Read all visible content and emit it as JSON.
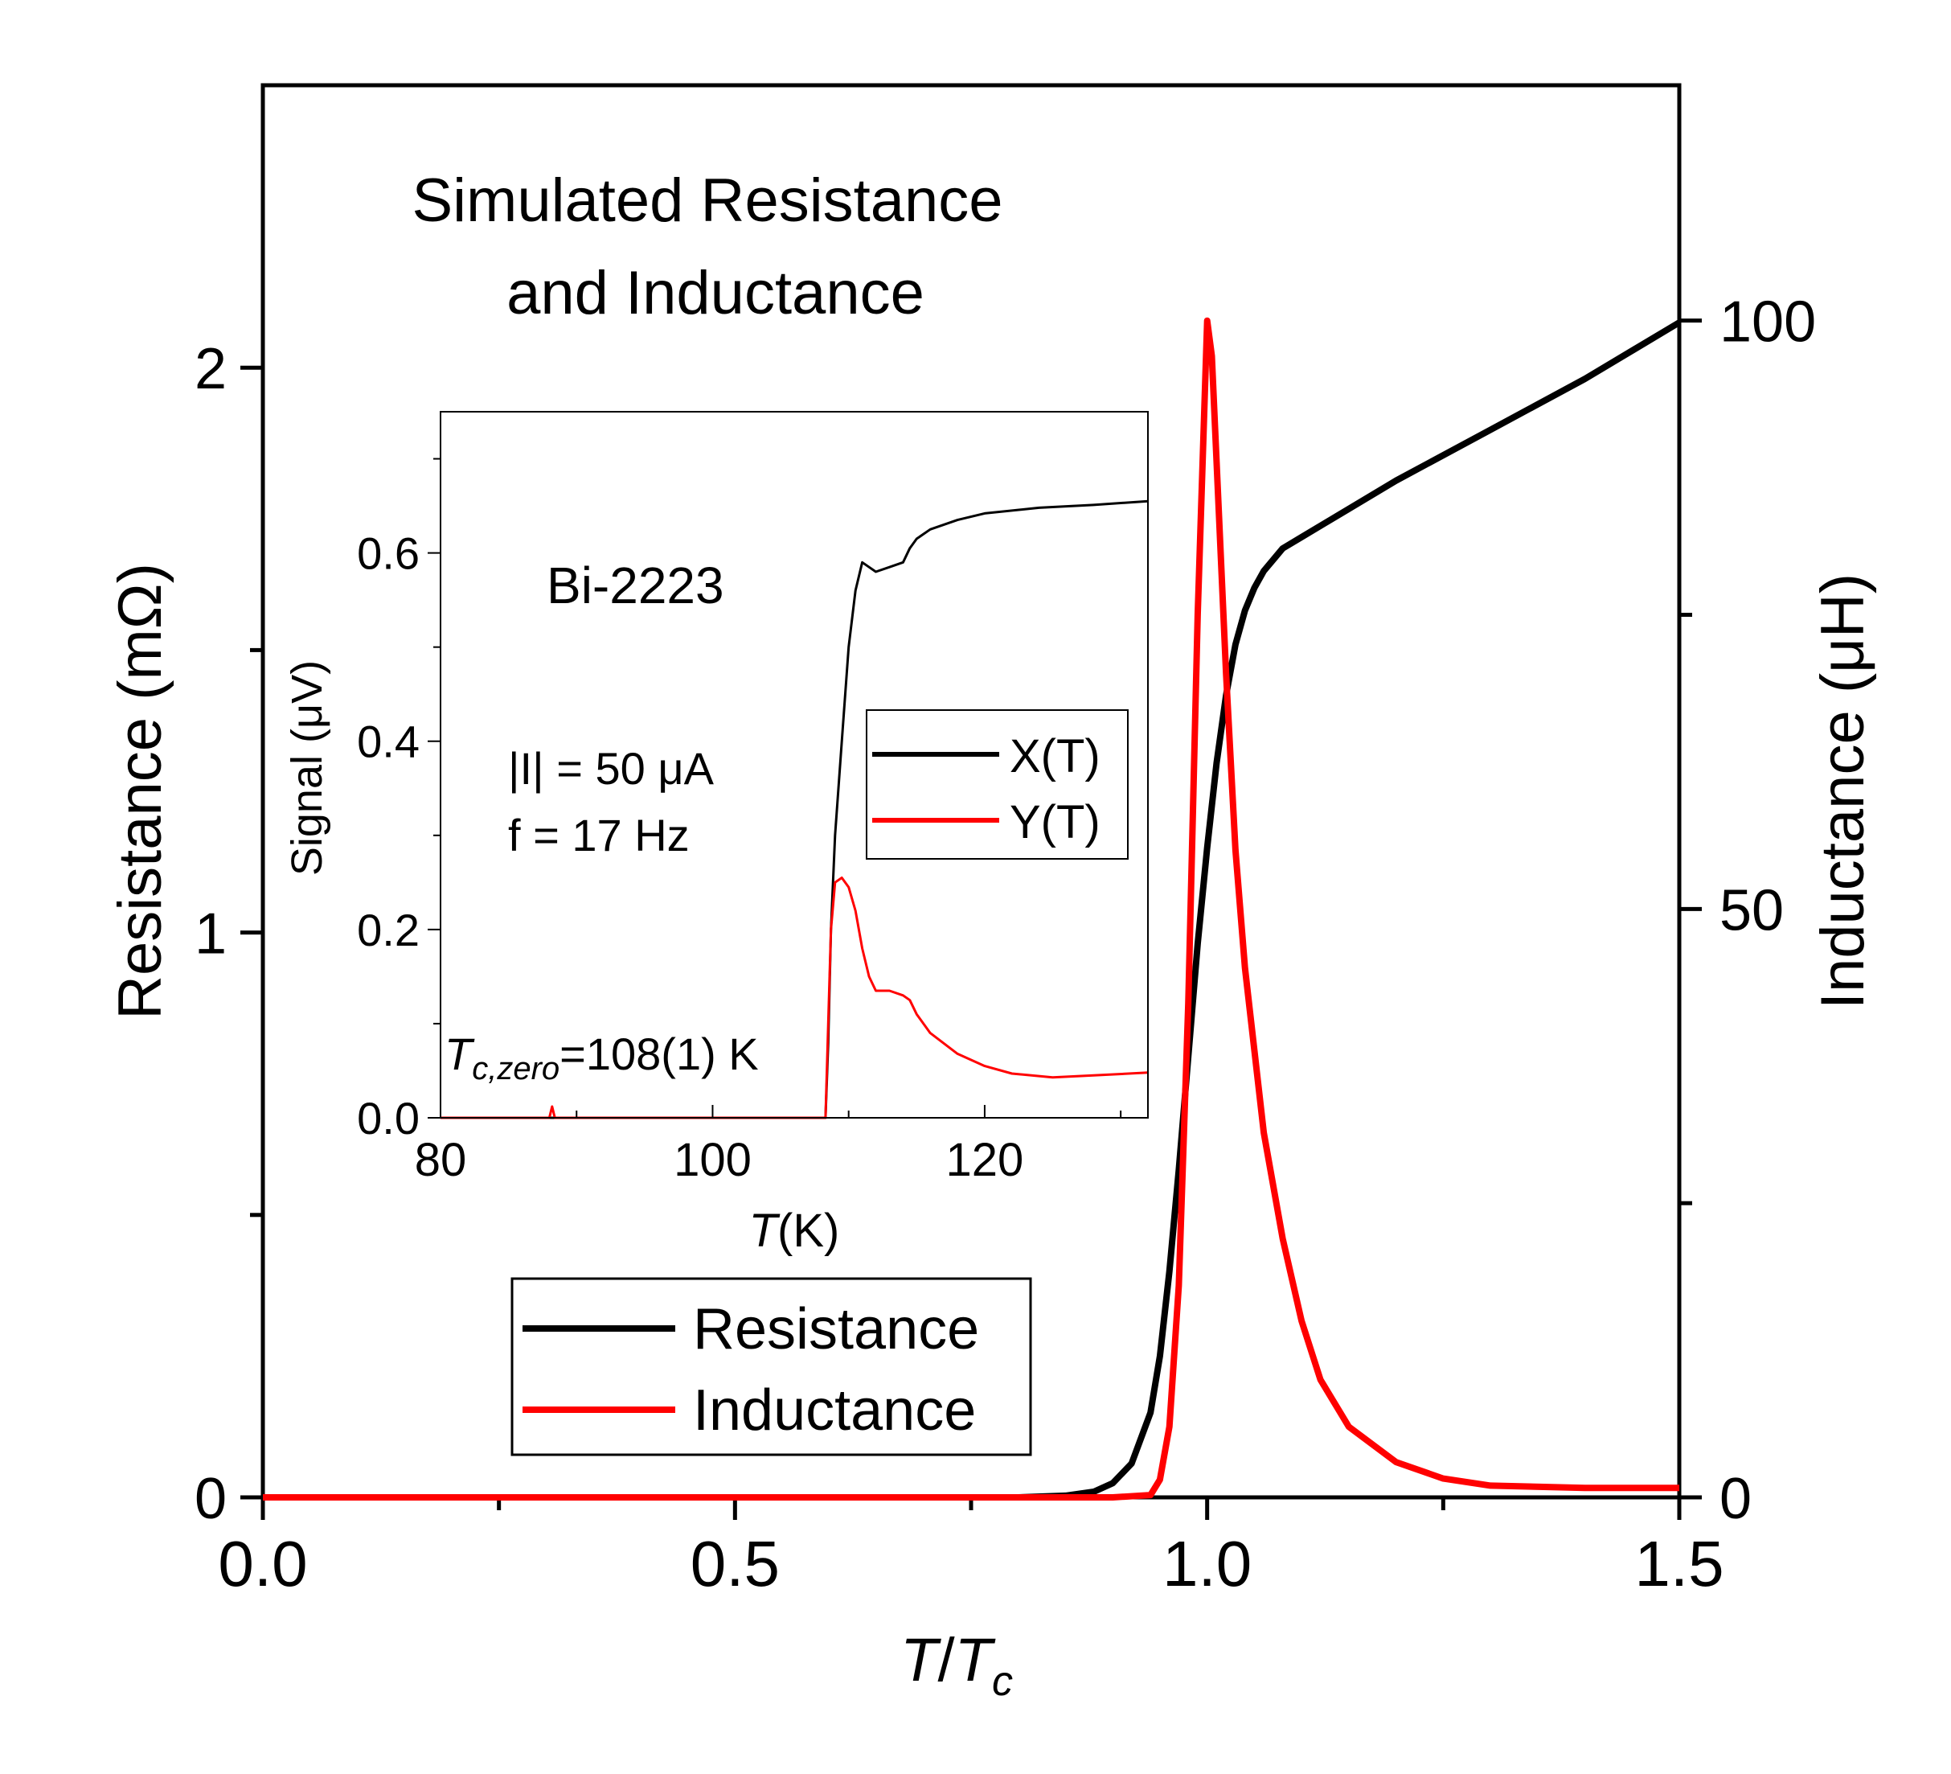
{
  "colors": {
    "resistance": "#000000",
    "inductance": "#ff0000",
    "axis": "#000000"
  },
  "chart_data": [
    {
      "id": "main",
      "type": "line",
      "title_line1": "Simulated Resistance",
      "title_line2": "and Inductance",
      "xlabel_italic": "T",
      "xlabel_sep": "/",
      "xlabel_sub_base": "T",
      "xlabel_sub": "c",
      "ylabel_left": "Resistance (mΩ)",
      "ylabel_right": "Inductance (μH)",
      "xlim": [
        0,
        1.5
      ],
      "ylim_left": [
        0,
        2.5
      ],
      "ylim_right": [
        0,
        120
      ],
      "x_ticks": [
        0.0,
        0.5,
        1.0,
        1.5
      ],
      "x_tick_labels": [
        "0.0",
        "0.5",
        "1.0",
        "1.5"
      ],
      "x_minor_ticks": [
        0.25,
        0.75,
        1.25
      ],
      "y_left_ticks": [
        0,
        1,
        2
      ],
      "y_left_tick_labels": [
        "0",
        "1",
        "2"
      ],
      "y_left_minor_ticks": [
        0.5,
        1.5
      ],
      "y_right_ticks": [
        0,
        50,
        100
      ],
      "y_right_tick_labels": [
        "0",
        "50",
        "100"
      ],
      "y_right_minor_ticks": [
        25,
        75
      ],
      "legend": [
        {
          "label": "Resistance",
          "color": "#000000"
        },
        {
          "label": "Inductance",
          "color": "#ff0000"
        }
      ],
      "legend_position": "bottom-left",
      "series": [
        {
          "name": "Resistance",
          "axis": "left",
          "x": [
            0.0,
            0.5,
            0.8,
            0.85,
            0.88,
            0.9,
            0.92,
            0.94,
            0.95,
            0.96,
            0.97,
            0.98,
            0.99,
            1.0,
            1.01,
            1.02,
            1.03,
            1.04,
            1.05,
            1.06,
            1.07,
            1.08,
            1.1,
            1.15,
            1.2,
            1.3,
            1.4,
            1.5
          ],
          "values": [
            0.0,
            0.0,
            0.0,
            0.003,
            0.01,
            0.025,
            0.06,
            0.15,
            0.25,
            0.4,
            0.58,
            0.78,
            0.98,
            1.15,
            1.3,
            1.42,
            1.51,
            1.57,
            1.61,
            1.64,
            1.66,
            1.68,
            1.7,
            1.75,
            1.8,
            1.89,
            1.98,
            2.08
          ]
        },
        {
          "name": "Inductance",
          "axis": "right",
          "x": [
            0.0,
            0.9,
            0.94,
            0.95,
            0.96,
            0.97,
            0.98,
            0.99,
            1.0,
            1.005,
            1.01,
            1.02,
            1.03,
            1.04,
            1.05,
            1.06,
            1.08,
            1.1,
            1.12,
            1.15,
            1.2,
            1.25,
            1.3,
            1.4,
            1.5
          ],
          "values": [
            0.0,
            0.0,
            0.2,
            1.5,
            6,
            18,
            42,
            75,
            100,
            97,
            88,
            70,
            55,
            45,
            38,
            31,
            22,
            15,
            10,
            6,
            3,
            1.6,
            1.0,
            0.8,
            0.8
          ]
        }
      ]
    },
    {
      "id": "inset",
      "type": "line",
      "sample_label": "Bi-2223",
      "annotation_current": "|I| = 50 μA",
      "annotation_freq": "f = 17 Hz",
      "tc_label_base": "T",
      "tc_label_sub": "c,zero",
      "tc_label_value": "=108(1) K",
      "xlabel_italic": "T",
      "xlabel_unit": "(K)",
      "ylabel": "Signal (μV)",
      "xlim": [
        80,
        132
      ],
      "ylim": [
        0,
        0.75
      ],
      "x_ticks": [
        80,
        100,
        120
      ],
      "x_tick_labels": [
        "80",
        "100",
        "120"
      ],
      "x_minor_ticks": [
        90,
        110,
        130
      ],
      "y_ticks": [
        0.0,
        0.2,
        0.4,
        0.6
      ],
      "y_tick_labels": [
        "0.0",
        "0.2",
        "0.4",
        "0.6"
      ],
      "y_minor_ticks": [
        0.1,
        0.3,
        0.5,
        0.7
      ],
      "legend": [
        {
          "label": "X(T)",
          "color": "#000000"
        },
        {
          "label": "Y(T)",
          "color": "#ff0000"
        }
      ],
      "legend_position": "right",
      "series": [
        {
          "name": "X(T)",
          "x": [
            80,
            100,
            108.3,
            108.5,
            108.7,
            109,
            109.5,
            110,
            110.5,
            111,
            111.5,
            112,
            113,
            114,
            114.5,
            115,
            116,
            118,
            120,
            124,
            128,
            132
          ],
          "values": [
            0.0,
            0.0,
            0.0,
            0.08,
            0.2,
            0.3,
            0.4,
            0.5,
            0.56,
            0.59,
            0.585,
            0.58,
            0.585,
            0.59,
            0.605,
            0.615,
            0.625,
            0.635,
            0.642,
            0.648,
            0.651,
            0.655
          ]
        },
        {
          "name": "Y(T)",
          "x": [
            80,
            88,
            88.2,
            88.4,
            100,
            108.3,
            108.5,
            108.7,
            109,
            109.5,
            110,
            110.5,
            111,
            111.5,
            112,
            113,
            114,
            114.5,
            115,
            116,
            118,
            120,
            122,
            125,
            128,
            132
          ],
          "values": [
            0.0,
            0.0,
            0.012,
            0.0,
            0.0,
            0.0,
            0.1,
            0.2,
            0.25,
            0.255,
            0.245,
            0.22,
            0.18,
            0.15,
            0.135,
            0.135,
            0.13,
            0.125,
            0.11,
            0.09,
            0.068,
            0.055,
            0.047,
            0.043,
            0.045,
            0.048
          ]
        }
      ]
    }
  ]
}
